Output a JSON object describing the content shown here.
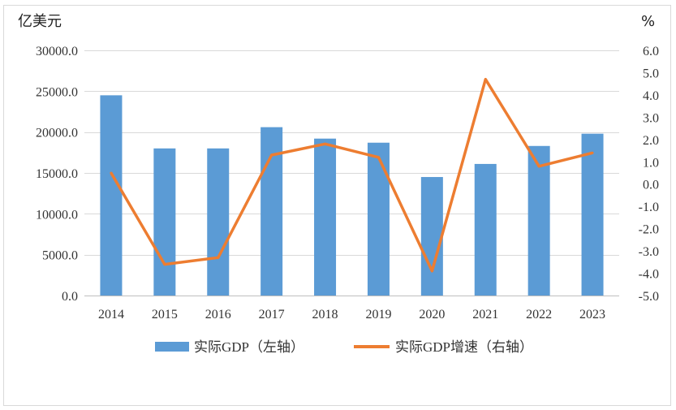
{
  "chart_data": {
    "type": "bar+line",
    "left_axis_unit": "亿美元",
    "right_axis_unit": "%",
    "categories": [
      "2014",
      "2015",
      "2016",
      "2017",
      "2018",
      "2019",
      "2020",
      "2021",
      "2022",
      "2023"
    ],
    "series": [
      {
        "name": "实际GDP（左轴）",
        "type": "bar",
        "axis": "left",
        "color": "#5b9bd5",
        "values": [
          24500,
          18000,
          18000,
          20600,
          19200,
          18700,
          14500,
          16100,
          18300,
          19800
        ]
      },
      {
        "name": "实际GDP增速（右轴）",
        "type": "line",
        "axis": "right",
        "color": "#ed7d31",
        "values": [
          0.5,
          -3.6,
          -3.3,
          1.3,
          1.8,
          1.2,
          -3.9,
          4.7,
          0.8,
          1.4
        ]
      }
    ],
    "left_axis": {
      "ylim": [
        0,
        30000
      ],
      "ticks": [
        "30000.0",
        "25000.0",
        "20000.0",
        "15000.0",
        "10000.0",
        "5000.0",
        "0.0"
      ]
    },
    "right_axis": {
      "ylim": [
        -5,
        6
      ],
      "ticks": [
        "6.0",
        "5.0",
        "4.0",
        "3.0",
        "2.0",
        "1.0",
        "0.0",
        "-1.0",
        "-2.0",
        "-3.0",
        "-4.0",
        "-5.0"
      ]
    },
    "grid": true,
    "legend_position": "bottom"
  }
}
